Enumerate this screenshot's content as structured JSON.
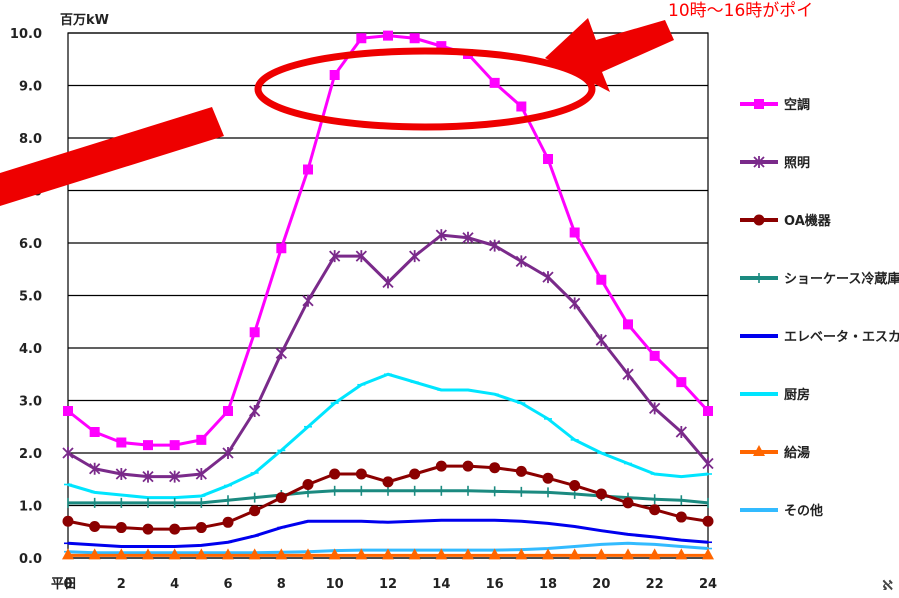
{
  "chart_data": {
    "type": "line",
    "ylabel": "百万kW",
    "x_prefix": "平日",
    "ylim": [
      0,
      10
    ],
    "y_ticks": [
      "0.0",
      "1.0",
      "2.0",
      "3.0",
      "4.0",
      "5.0",
      "6.0",
      "7.0",
      "8.0",
      "9.0",
      "10.0"
    ],
    "x_ticks": [
      "0",
      "2",
      "4",
      "6",
      "8",
      "10",
      "12",
      "14",
      "16",
      "18",
      "20",
      "22",
      "24"
    ],
    "x": [
      0,
      1,
      2,
      3,
      4,
      5,
      6,
      7,
      8,
      9,
      10,
      11,
      12,
      13,
      14,
      15,
      16,
      17,
      18,
      19,
      20,
      21,
      22,
      23,
      24
    ],
    "grid": true,
    "legend_position": "right",
    "series": [
      {
        "name": "空調",
        "color": "#ff00ff",
        "marker": "square",
        "values": [
          2.8,
          2.4,
          2.2,
          2.15,
          2.15,
          2.25,
          2.8,
          4.3,
          5.9,
          7.4,
          9.2,
          9.9,
          9.95,
          9.9,
          9.75,
          9.6,
          9.05,
          8.6,
          7.6,
          6.2,
          5.3,
          4.45,
          3.85,
          3.35,
          2.8
        ]
      },
      {
        "name": "照明",
        "color": "#7a2a8a",
        "marker": "star",
        "values": [
          2.0,
          1.7,
          1.6,
          1.55,
          1.55,
          1.6,
          2.0,
          2.8,
          3.9,
          4.9,
          5.75,
          5.75,
          5.25,
          5.75,
          6.15,
          6.1,
          5.95,
          5.65,
          5.35,
          4.85,
          4.15,
          3.5,
          2.85,
          2.4,
          1.8
        ]
      },
      {
        "name": "OA機器",
        "color": "#8b0000",
        "marker": "circle",
        "values": [
          0.7,
          0.6,
          0.58,
          0.55,
          0.55,
          0.58,
          0.68,
          0.9,
          1.15,
          1.4,
          1.6,
          1.6,
          1.45,
          1.6,
          1.75,
          1.75,
          1.72,
          1.65,
          1.52,
          1.38,
          1.22,
          1.05,
          0.92,
          0.78,
          0.7
        ]
      },
      {
        "name": "ショーケース冷蔵庫",
        "color": "#1b8a80",
        "marker": "plus",
        "values": [
          1.05,
          1.05,
          1.05,
          1.05,
          1.05,
          1.05,
          1.1,
          1.15,
          1.2,
          1.25,
          1.28,
          1.28,
          1.28,
          1.28,
          1.28,
          1.28,
          1.27,
          1.26,
          1.25,
          1.22,
          1.18,
          1.15,
          1.12,
          1.1,
          1.05
        ]
      },
      {
        "name": "エレベータ・エスカレータ",
        "color": "#0000ee",
        "marker": "dash",
        "values": [
          0.28,
          0.25,
          0.22,
          0.22,
          0.22,
          0.24,
          0.3,
          0.42,
          0.58,
          0.7,
          0.7,
          0.7,
          0.68,
          0.7,
          0.72,
          0.72,
          0.72,
          0.7,
          0.66,
          0.6,
          0.52,
          0.45,
          0.4,
          0.34,
          0.3
        ]
      },
      {
        "name": "厨房",
        "color": "#00e5ff",
        "marker": "dash",
        "values": [
          1.4,
          1.25,
          1.2,
          1.15,
          1.15,
          1.18,
          1.38,
          1.62,
          2.05,
          2.5,
          2.95,
          3.3,
          3.5,
          3.35,
          3.2,
          3.2,
          3.12,
          2.95,
          2.65,
          2.25,
          2.0,
          1.8,
          1.6,
          1.55,
          1.6
        ]
      },
      {
        "name": "給湯",
        "color": "#ff6600",
        "marker": "triangle",
        "values": [
          0.05,
          0.05,
          0.05,
          0.05,
          0.05,
          0.05,
          0.05,
          0.05,
          0.05,
          0.05,
          0.05,
          0.05,
          0.05,
          0.05,
          0.05,
          0.05,
          0.05,
          0.05,
          0.05,
          0.05,
          0.05,
          0.05,
          0.05,
          0.05,
          0.05
        ]
      },
      {
        "name": "その他",
        "color": "#33bbff",
        "marker": "dash",
        "values": [
          0.12,
          0.1,
          0.1,
          0.1,
          0.1,
          0.1,
          0.1,
          0.1,
          0.11,
          0.12,
          0.14,
          0.15,
          0.15,
          0.15,
          0.15,
          0.15,
          0.15,
          0.16,
          0.18,
          0.22,
          0.26,
          0.28,
          0.26,
          0.22,
          0.18
        ]
      }
    ],
    "annotation": "10時～16時がポイ",
    "corner_text": "ℵ"
  }
}
